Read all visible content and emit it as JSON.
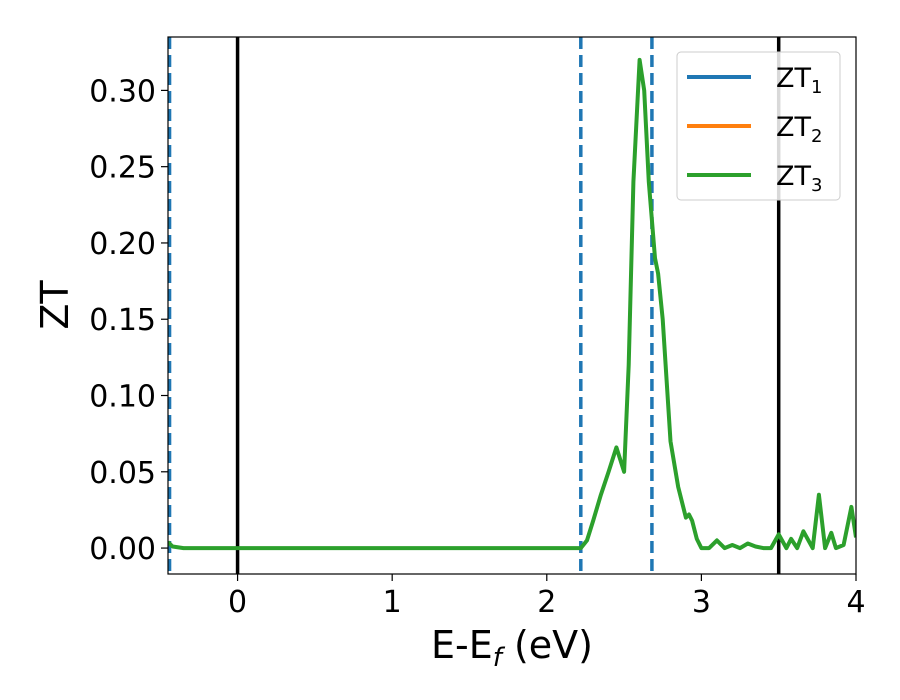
{
  "chart_data": {
    "type": "line",
    "xlabel": "E-E",
    "xlabel_sub": "f",
    "xlabel_unit": " (eV)",
    "ylabel": "ZT",
    "xlim": [
      -0.45,
      4.0
    ],
    "ylim": [
      -0.017,
      0.335
    ],
    "xticks": [
      0,
      1,
      2,
      3,
      4
    ],
    "xtick_labels": [
      "0",
      "1",
      "2",
      "3",
      "4"
    ],
    "yticks": [
      0.0,
      0.05,
      0.1,
      0.15,
      0.2,
      0.25,
      0.3
    ],
    "ytick_labels": [
      "0.00",
      "0.05",
      "0.10",
      "0.15",
      "0.20",
      "0.25",
      "0.30"
    ],
    "grid": false,
    "legend_position": "top-right",
    "vlines": [
      {
        "x": -0.44,
        "style": "dashed",
        "color": "#1f77b4"
      },
      {
        "x": 0.0,
        "style": "solid",
        "color": "#000000"
      },
      {
        "x": 2.22,
        "style": "dashed",
        "color": "#1f77b4"
      },
      {
        "x": 2.68,
        "style": "dashed",
        "color": "#1f77b4"
      },
      {
        "x": 3.5,
        "style": "solid",
        "color": "#000000"
      }
    ],
    "series": [
      {
        "name": "ZT",
        "sub": "1",
        "color": "#1f77b4",
        "x": [],
        "y": []
      },
      {
        "name": "ZT",
        "sub": "2",
        "color": "#ff7f0e",
        "x": [],
        "y": []
      },
      {
        "name": "ZT",
        "sub": "3",
        "color": "#2ca02c",
        "x": [
          -0.45,
          -0.42,
          -0.35,
          0.0,
          1.0,
          2.0,
          2.15,
          2.22,
          2.26,
          2.3,
          2.35,
          2.4,
          2.45,
          2.5,
          2.53,
          2.56,
          2.6,
          2.63,
          2.66,
          2.7,
          2.72,
          2.75,
          2.8,
          2.85,
          2.9,
          2.92,
          2.94,
          2.97,
          3.0,
          3.05,
          3.1,
          3.15,
          3.2,
          3.25,
          3.3,
          3.35,
          3.4,
          3.45,
          3.5,
          3.55,
          3.58,
          3.62,
          3.66,
          3.72,
          3.76,
          3.8,
          3.84,
          3.87,
          3.92,
          3.97,
          4.0
        ],
        "y": [
          0.004,
          0.001,
          0.0,
          0.0,
          0.0,
          0.0,
          0.0,
          0.0,
          0.005,
          0.018,
          0.035,
          0.05,
          0.066,
          0.05,
          0.12,
          0.24,
          0.32,
          0.3,
          0.24,
          0.19,
          0.18,
          0.15,
          0.07,
          0.04,
          0.02,
          0.022,
          0.018,
          0.006,
          0.0,
          0.0,
          0.005,
          0.0,
          0.002,
          0.0,
          0.003,
          0.001,
          0.0,
          0.0,
          0.009,
          0.0,
          0.006,
          0.0,
          0.011,
          0.0,
          0.035,
          0.0,
          0.01,
          0.0,
          0.002,
          0.027,
          0.007
        ]
      }
    ]
  }
}
